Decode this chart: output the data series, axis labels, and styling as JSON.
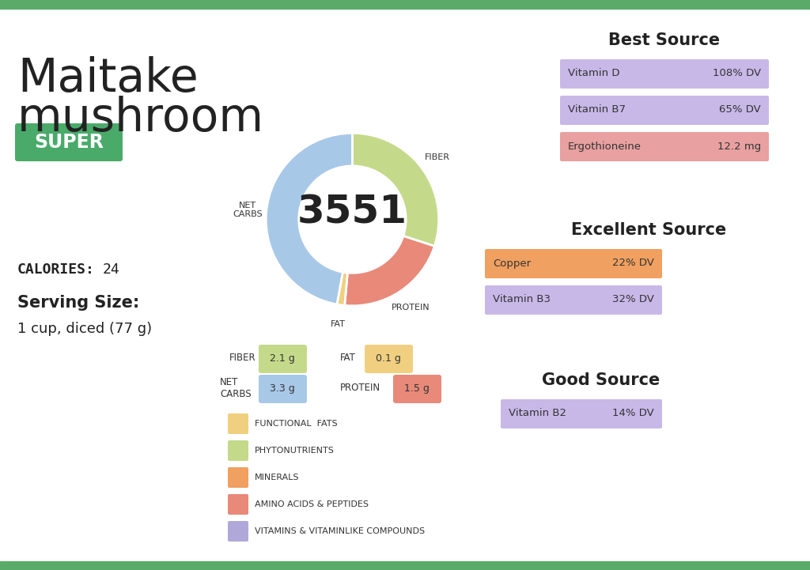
{
  "title_line1": "Maitake",
  "title_line2": "mushroom",
  "super_label": "SUPER",
  "super_bg": "#4aaa6a",
  "super_text_color": "#ffffff",
  "calories_label": "CALORIES:",
  "calories_value": "24",
  "serving_size_label": "Serving Size:",
  "serving_size_value": "1 cup, diced (77 g)",
  "donut_center_value": "3551",
  "donut_segments": [
    {
      "label": "FIBER",
      "value": 2.1,
      "color": "#c5d98a"
    },
    {
      "label": "PROTEIN",
      "value": 1.5,
      "color": "#e8897a"
    },
    {
      "label": "FAT",
      "value": 0.1,
      "color": "#f0d080"
    },
    {
      "label": "NET\nCARBS",
      "value": 3.3,
      "color": "#a8c8e8"
    }
  ],
  "legend_items": [
    {
      "label": "FUNCTIONAL  FATS",
      "color": "#f0d080"
    },
    {
      "label": "PHYTONUTRIENTS",
      "color": "#c5d98a"
    },
    {
      "label": "MINERALS",
      "color": "#f0a060"
    },
    {
      "label": "AMINO ACIDS & PEPTIDES",
      "color": "#e8897a"
    },
    {
      "label": "VITAMINS & VITAMINLIKE COMPOUNDS",
      "color": "#b0a8d8"
    }
  ],
  "best_source_title": "Best Source",
  "best_source": [
    {
      "label": "Vitamin D",
      "value": "108% DV",
      "color": "#c8b8e8"
    },
    {
      "label": "Vitamin B7",
      "value": "65% DV",
      "color": "#c8b8e8"
    },
    {
      "label": "Ergothioneine",
      "value": "12.2 mg",
      "color": "#e8a0a0"
    }
  ],
  "excellent_source_title": "Excellent Source",
  "excellent_source": [
    {
      "label": "Copper",
      "value": "22% DV",
      "color": "#f0a060"
    },
    {
      "label": "Vitamin B3",
      "value": "32% DV",
      "color": "#c8b8e8"
    }
  ],
  "good_source_title": "Good Source",
  "good_source": [
    {
      "label": "Vitamin B2",
      "value": "14% DV",
      "color": "#c8b8e8"
    }
  ],
  "bg_color": "#ffffff",
  "bar_color": "#5aaa6a"
}
